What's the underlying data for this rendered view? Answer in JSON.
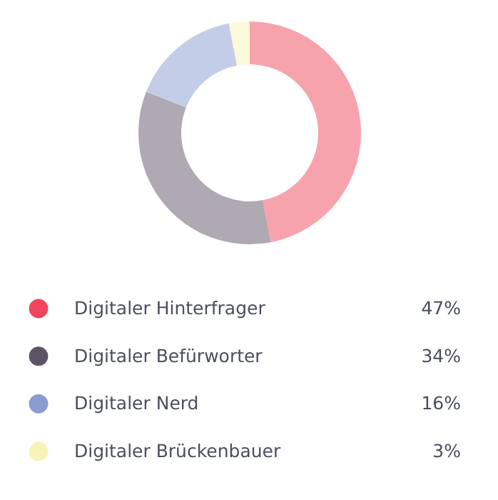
{
  "chart_data": {
    "type": "donut",
    "categories": [
      "Digitaler Hinterfrager",
      "Digitaler Befürworter",
      "Digitaler Nerd",
      "Digitaler Brückenbauer"
    ],
    "values": [
      47,
      34,
      16,
      3
    ],
    "colors": [
      "#f0475e",
      "#5d5466",
      "#8a9bd1",
      "#f9f3b7"
    ],
    "value_labels": [
      "47%",
      "34%",
      "16%",
      "3%"
    ],
    "legend": "bottom"
  }
}
